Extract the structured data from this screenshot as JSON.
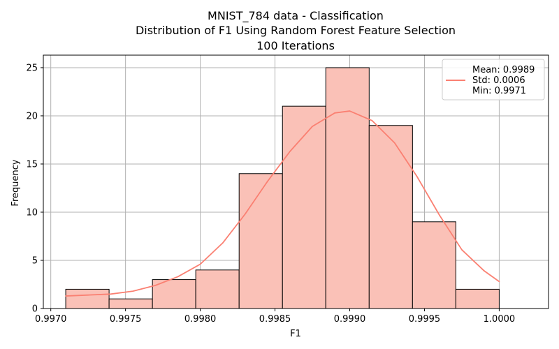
{
  "chart_data": {
    "type": "bar",
    "title_lines": [
      "MNIST_784 data - Classification",
      "Distribution of F1 Using Random Forest Feature Selection",
      "100 Iterations"
    ],
    "xlabel": "F1",
    "ylabel": "Frequency",
    "xlim": [
      0.99695,
      1.00033
    ],
    "ylim": [
      0,
      26.3
    ],
    "xticks": [
      0.997,
      0.9975,
      0.998,
      0.9985,
      0.999,
      0.9995,
      1.0
    ],
    "xtick_labels": [
      "0.9970",
      "0.9975",
      "0.9980",
      "0.9985",
      "0.9990",
      "0.9995",
      "1.0000"
    ],
    "yticks": [
      0,
      5,
      10,
      15,
      20,
      25
    ],
    "ytick_labels": [
      "0",
      "5",
      "10",
      "15",
      "20",
      "25"
    ],
    "grid": true,
    "bins": {
      "edges": [
        0.9971,
        0.99739,
        0.99768,
        0.99797,
        0.99826,
        0.99855,
        0.99884,
        0.99913,
        0.99942,
        0.99971,
        1.0
      ],
      "counts": [
        2,
        1,
        3,
        4,
        14,
        21,
        25,
        19,
        9,
        2
      ]
    },
    "kde": {
      "x": [
        0.9971,
        0.99725,
        0.9974,
        0.99755,
        0.9977,
        0.99785,
        0.998,
        0.99815,
        0.9983,
        0.99845,
        0.9986,
        0.99875,
        0.9989,
        0.999,
        0.99915,
        0.9993,
        0.99945,
        0.9996,
        0.99975,
        0.9999,
        1.0
      ],
      "y": [
        1.3,
        1.4,
        1.5,
        1.8,
        2.4,
        3.3,
        4.6,
        6.8,
        9.8,
        13.2,
        16.3,
        18.9,
        20.3,
        20.5,
        19.5,
        17.2,
        13.7,
        9.7,
        6.1,
        3.9,
        2.8
      ]
    },
    "legend": {
      "placement": "upper right",
      "series_label": "Mean: 0.9989\nStd: 0.0006\nMin: 0.9971",
      "lines": [
        "Mean: 0.9989",
        "Std: 0.0006",
        "Min: 0.9971"
      ]
    },
    "colors": {
      "bar_fill": "#fac1b7",
      "bar_edge": "#000000",
      "kde_line": "#fa8072",
      "grid": "#b0b0b0"
    }
  }
}
